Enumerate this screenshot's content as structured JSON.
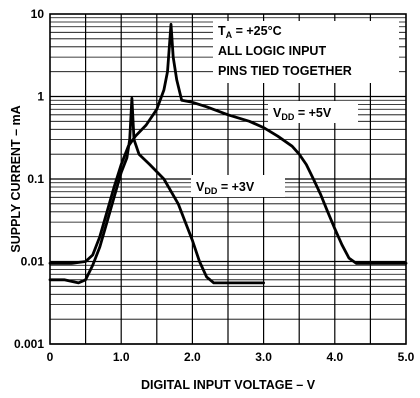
{
  "chart_data": {
    "type": "line",
    "title": "",
    "xlabel": "DIGITAL INPUT VOLTAGE – V",
    "ylabel": "SUPPLY CURRENT – mA",
    "xlim": [
      0,
      5
    ],
    "ylim": [
      0.001,
      10
    ],
    "y_scale": "log",
    "grid": true,
    "x_ticks": [
      "0",
      "1.0",
      "2.0",
      "3.0",
      "4.0",
      "5.0"
    ],
    "y_ticks": [
      "0.001",
      "0.01",
      "0.1",
      "1",
      "10"
    ],
    "annotations": {
      "condition_lines": [
        {
          "main": "T",
          "sub": "A",
          "rest": " = +25°C"
        },
        {
          "main": "ALL LOGIC INPUT",
          "sub": "",
          "rest": ""
        },
        {
          "main": "PINS TIED TOGETHER",
          "sub": "",
          "rest": ""
        }
      ]
    },
    "series": [
      {
        "label": {
          "main": "V",
          "sub": "DD",
          "rest": " = +5V"
        },
        "x": [
          0.0,
          0.1,
          0.3,
          0.5,
          0.6,
          0.7,
          0.8,
          0.9,
          1.0,
          1.1,
          1.2,
          1.35,
          1.5,
          1.6,
          1.65,
          1.7,
          1.73,
          1.78,
          1.85,
          2.0,
          2.2,
          2.5,
          2.8,
          3.0,
          3.2,
          3.4,
          3.5,
          3.6,
          3.7,
          3.8,
          3.9,
          4.0,
          4.1,
          4.2,
          4.3,
          4.5,
          5.0
        ],
        "y": [
          0.0095,
          0.0095,
          0.0095,
          0.01,
          0.012,
          0.02,
          0.04,
          0.08,
          0.15,
          0.25,
          0.33,
          0.45,
          0.7,
          1.2,
          2.0,
          7.5,
          3.0,
          1.6,
          0.9,
          0.85,
          0.75,
          0.6,
          0.5,
          0.42,
          0.33,
          0.25,
          0.2,
          0.15,
          0.1,
          0.065,
          0.04,
          0.025,
          0.016,
          0.011,
          0.0095,
          0.0095,
          0.0095
        ]
      },
      {
        "label": {
          "main": "V",
          "sub": "DD",
          "rest": " = +3V"
        },
        "x": [
          0.0,
          0.2,
          0.4,
          0.5,
          0.6,
          0.7,
          0.8,
          0.9,
          1.0,
          1.08,
          1.12,
          1.15,
          1.18,
          1.25,
          1.4,
          1.6,
          1.8,
          1.9,
          2.0,
          2.1,
          2.2,
          2.3,
          3.0
        ],
        "y": [
          0.006,
          0.006,
          0.0055,
          0.006,
          0.009,
          0.015,
          0.03,
          0.06,
          0.12,
          0.18,
          0.3,
          0.95,
          0.3,
          0.2,
          0.15,
          0.1,
          0.05,
          0.03,
          0.018,
          0.01,
          0.0065,
          0.0055,
          0.0055
        ]
      }
    ]
  }
}
